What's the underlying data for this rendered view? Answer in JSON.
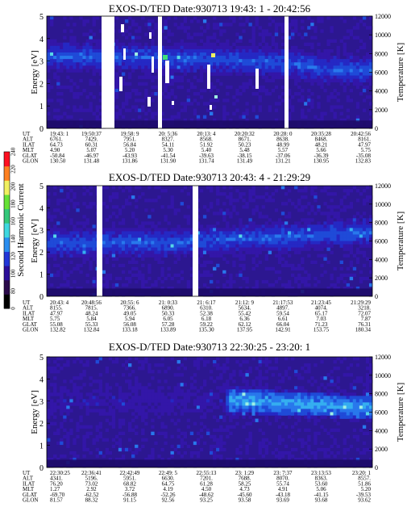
{
  "color_scale": {
    "label": "Second Harmonic Current",
    "ticks": [
      "0",
      "80",
      "100",
      "120",
      "140",
      "160",
      "180",
      "200",
      "220",
      "240"
    ],
    "colors": [
      "#000000",
      "#2a0a4a",
      "#2b0e9a",
      "#2236d8",
      "#2a8ef0",
      "#3fd8e0",
      "#34c87a",
      "#66e236",
      "#f0f060",
      "#ff8020",
      "#ff1020"
    ]
  },
  "chart_data": [
    {
      "type": "heatmap",
      "title": "EXOS-D/TED   Date:930713  19:43: 1 - 20:42:56",
      "ylabel": "Energy [eV]",
      "ylabel_right": "Temperature [K]",
      "ylim": [
        0,
        5
      ],
      "ylim_right": [
        0,
        12000
      ],
      "yticks": [
        "0",
        "1",
        "2",
        "3",
        "4",
        "5"
      ],
      "yticks_right": [
        "0",
        "2000",
        "4000",
        "6000",
        "8000",
        "10000",
        "12000"
      ],
      "band_center_ev": [
        3.2,
        3.2,
        3.2,
        3.1,
        3.1,
        3.0,
        2.9,
        2.6,
        2.6
      ],
      "table": {
        "row_labels": [
          "UT",
          "ALT",
          "ILAT",
          "MLT",
          "GLAT",
          "GLON"
        ],
        "columns": [
          [
            "19:43: 1",
            "6761.",
            "64.73",
            "4.90",
            "-50.84",
            "130.50"
          ],
          [
            "19:50:37",
            "7429.",
            "60.31",
            "5.07",
            "-46.97",
            "131.48"
          ],
          [
            "19:58: 9",
            "7951.",
            "56.84",
            "5.20",
            "-43.93",
            "131.86"
          ],
          [
            "20: 5:36",
            "8327.",
            "54.11",
            "5.30",
            "-41.54",
            "131.90"
          ],
          [
            "20:13: 4",
            "8568.",
            "51.92",
            "5.40",
            "-39.63",
            "131.74"
          ],
          [
            "20:20:32",
            "8671.",
            "50.23",
            "5.48",
            "-38.15",
            "131.49"
          ],
          [
            "20:28: 0",
            "8638.",
            "48.99",
            "5.57",
            "-37.06",
            "131.21"
          ],
          [
            "20:35:28",
            "8468.",
            "48.21",
            "5.66",
            "-36.39",
            "130.95"
          ],
          [
            "20:42:56",
            "8161.",
            "47.97",
            "5.75",
            "-35.08",
            "132.83"
          ]
        ]
      }
    },
    {
      "type": "heatmap",
      "title": "EXOS-D/TED   Date:930713  20:43: 4 - 21:29:29",
      "ylabel": "Energy [eV]",
      "ylabel_right": "Temperature [K]",
      "ylim": [
        0,
        5
      ],
      "ylim_right": [
        0,
        12000
      ],
      "yticks": [
        "0",
        "1",
        "2",
        "3",
        "4",
        "5"
      ],
      "yticks_right": [
        "0",
        "2000",
        "4000",
        "6000",
        "8000",
        "10000",
        "12000"
      ],
      "band_center_ev": [
        2.4,
        2.4,
        2.4,
        2.4,
        2.5,
        2.6,
        2.7,
        2.8,
        2.9
      ],
      "table": {
        "row_labels": [
          "UT",
          "ALT",
          "ILAT",
          "MLT",
          "GLAT",
          "GLON"
        ],
        "columns": [
          [
            "20:43: 4",
            "8155.",
            "47.97",
            "5.75",
            "55.08",
            "132.82"
          ],
          [
            "20:48:56",
            "7815.",
            "48.24",
            "5.84",
            "55.33",
            "132.84"
          ],
          [
            "20:55: 6",
            "7366.",
            "49.05",
            "5.94",
            "56.08",
            "133.18"
          ],
          [
            "21: 0:33",
            "6890.",
            "50.33",
            "6.05",
            "57.28",
            "133.89"
          ],
          [
            "21: 6:17",
            "6310.",
            "52.38",
            "6.18",
            "59.22",
            "135.30"
          ],
          [
            "21:12: 9",
            "5634.",
            "55.42",
            "6.36",
            "62.12",
            "137.95"
          ],
          [
            "21:17:53",
            "4897.",
            "59.54",
            "6.61",
            "66.04",
            "142.91"
          ],
          [
            "21:23:45",
            "4074.",
            "65.17",
            "7.03",
            "71.23",
            "153.75"
          ],
          [
            "21:29:29",
            "3218.",
            "72.07",
            "7.87",
            "76.31",
            "180.34"
          ]
        ]
      }
    },
    {
      "type": "heatmap",
      "title": "EXOS-D/TED   Date:930713  22:30:25 - 23:20: 1",
      "ylabel": "Energy [eV]",
      "ylabel_right": "Temperature [K]",
      "ylim": [
        0,
        5
      ],
      "ylim_right": [
        0,
        12000
      ],
      "yticks": [
        "0",
        "1",
        "2",
        "3",
        "4",
        "5"
      ],
      "yticks_right": [
        "0",
        "2000",
        "4000",
        "6000",
        "8000",
        "10000",
        "12000"
      ],
      "band_center_ev": [
        3.0,
        3.0,
        3.0,
        3.0,
        3.0,
        3.0,
        2.9,
        2.8,
        2.7
      ],
      "table": {
        "row_labels": [
          "UT",
          "ALT",
          "ILAT",
          "MLT",
          "GLAT",
          "GLON"
        ],
        "columns": [
          [
            "22:30:25",
            "4341.",
            "76.20",
            "1.27",
            "-69.70",
            "81.57"
          ],
          [
            "22:36:41",
            "5196.",
            "73.02",
            "2.92",
            "-62.52",
            "88.32"
          ],
          [
            "22:42:49",
            "5951.",
            "68.82",
            "3.72",
            "-56.88",
            "91.15"
          ],
          [
            "22:49: 5",
            "6630.",
            "64.75",
            "4.19",
            "-52.26",
            "92.56"
          ],
          [
            "22:55:13",
            "7201.",
            "61.28",
            "4.50",
            "-48.62",
            "93.25"
          ],
          [
            "23: 1:29",
            "7688.",
            "58.25",
            "4.73",
            "-45.60",
            "93.58"
          ],
          [
            "23: 7:37",
            "8070.",
            "55.74",
            "4.91",
            "-43.18",
            "93.69"
          ],
          [
            "23:13:53",
            "8363.",
            "53.60",
            "5.06",
            "-41.15",
            "93.68"
          ],
          [
            "23:20: 1",
            "8557.",
            "51.86",
            "5.20",
            "-39.53",
            "93.62"
          ]
        ]
      }
    }
  ]
}
